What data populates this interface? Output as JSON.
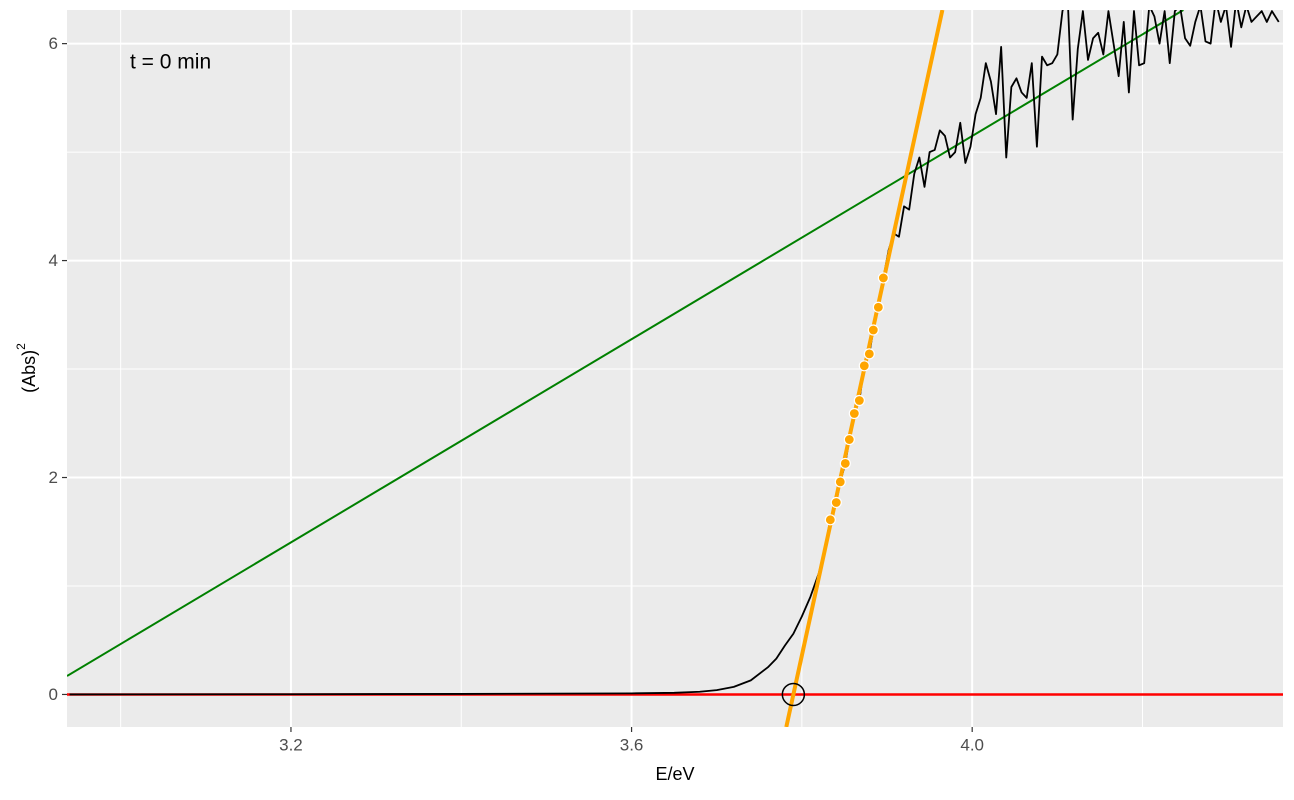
{
  "chart_data": {
    "type": "line",
    "annotation": "t = 0 min",
    "x_label": "E/eV",
    "y_label": {
      "text": "(Abs)",
      "superscript": "2"
    },
    "xlim": [
      2.937,
      4.365
    ],
    "ylim": [
      -0.3,
      6.31
    ],
    "xticks": [
      3.2,
      3.6,
      {
        "value": 4,
        "label": "4.0"
      }
    ],
    "x_minor_ticks": [
      3.0,
      3.4,
      3.8,
      4.2
    ],
    "yticks": [
      0,
      2,
      4,
      6
    ],
    "y_minor_ticks": [
      1,
      3,
      5
    ],
    "grid": true,
    "series": [
      {
        "mark": "line",
        "color": "#008000",
        "width": 2,
        "x": [
          2.937,
          4.248
        ],
        "values": [
          0.17,
          6.31
        ]
      },
      {
        "mark": "line",
        "color": "#ff0000",
        "width": 2.5,
        "x": [
          2.937,
          4.365
        ],
        "values": [
          0,
          0
        ]
      },
      {
        "mark": "line",
        "color": "#000000",
        "width": 1.8,
        "x": [
          2.94,
          3.2,
          3.4,
          3.6,
          3.65,
          3.68,
          3.7,
          3.72,
          3.74,
          3.76,
          3.77,
          3.78,
          3.79,
          3.8,
          3.81,
          3.82,
          3.827,
          3.8334,
          3.8404,
          3.8451,
          3.851,
          3.8557,
          3.8616,
          3.8675,
          3.8733,
          3.8792,
          3.8839,
          3.8898,
          3.8957,
          3.902,
          3.908,
          3.914,
          3.92,
          3.926,
          3.932,
          3.938,
          3.944,
          3.95,
          3.956,
          3.962,
          3.968,
          3.974,
          3.98,
          3.986,
          3.992,
          3.998,
          4.004,
          4.01,
          4.016,
          4.022,
          4.028,
          4.034,
          4.04,
          4.046,
          4.052,
          4.058,
          4.064,
          4.07,
          4.076,
          4.082,
          4.088,
          4.094,
          4.1,
          4.106,
          4.112,
          4.118,
          4.124,
          4.13,
          4.136,
          4.142,
          4.148,
          4.154,
          4.16,
          4.166,
          4.172,
          4.178,
          4.184,
          4.19,
          4.196,
          4.202,
          4.208,
          4.214,
          4.22,
          4.226,
          4.232,
          4.238,
          4.244,
          4.25,
          4.256,
          4.262,
          4.268,
          4.274,
          4.28,
          4.286,
          4.292,
          4.298,
          4.304,
          4.31,
          4.316,
          4.322,
          4.328,
          4.334,
          4.34,
          4.346,
          4.352,
          4.36
        ],
        "values": [
          0,
          0.002,
          0.005,
          0.01,
          0.015,
          0.025,
          0.04,
          0.07,
          0.13,
          0.25,
          0.33,
          0.45,
          0.56,
          0.72,
          0.9,
          1.12,
          1.35,
          1.61,
          1.77,
          1.96,
          2.13,
          2.35,
          2.59,
          2.71,
          3.03,
          3.14,
          3.36,
          3.57,
          3.84,
          4.1,
          4.25,
          4.22,
          4.5,
          4.47,
          4.8,
          4.95,
          4.68,
          5.0,
          5.02,
          5.2,
          5.15,
          4.95,
          5.0,
          5.27,
          4.9,
          5.05,
          5.35,
          5.5,
          5.82,
          5.65,
          5.35,
          5.97,
          4.95,
          5.6,
          5.68,
          5.55,
          5.5,
          5.82,
          5.05,
          5.88,
          5.8,
          5.82,
          5.9,
          6.3,
          6.45,
          5.3,
          5.95,
          6.3,
          5.85,
          6.05,
          6.1,
          5.9,
          6.3,
          6.0,
          5.7,
          6.2,
          5.55,
          6.3,
          5.8,
          5.82,
          6.35,
          6.25,
          6.0,
          6.3,
          5.82,
          6.3,
          6.35,
          6.05,
          5.98,
          6.2,
          6.35,
          6.02,
          6.0,
          6.4,
          6.2,
          6.35,
          5.97,
          6.4,
          6.15,
          6.35,
          6.2,
          6.25,
          6.3,
          6.2,
          6.3,
          6.2
        ]
      },
      {
        "mark": "line",
        "color": "#ffa500",
        "width": 4,
        "x": [
          3.7817,
          3.965
        ],
        "values": [
          -0.3,
          6.31
        ]
      },
      {
        "mark": "point",
        "color": "#ffa500",
        "x": [
          3.8334,
          3.8404,
          3.8451,
          3.851,
          3.8557,
          3.8616,
          3.8675,
          3.8733,
          3.8792,
          3.8839,
          3.8898,
          3.8957
        ],
        "values": [
          1.61,
          1.77,
          1.96,
          2.13,
          2.35,
          2.59,
          2.71,
          3.03,
          3.14,
          3.36,
          3.57,
          3.84
        ]
      },
      {
        "mark": "ring",
        "color": "#000000",
        "x": [
          3.79
        ],
        "values": [
          0
        ]
      }
    ]
  }
}
